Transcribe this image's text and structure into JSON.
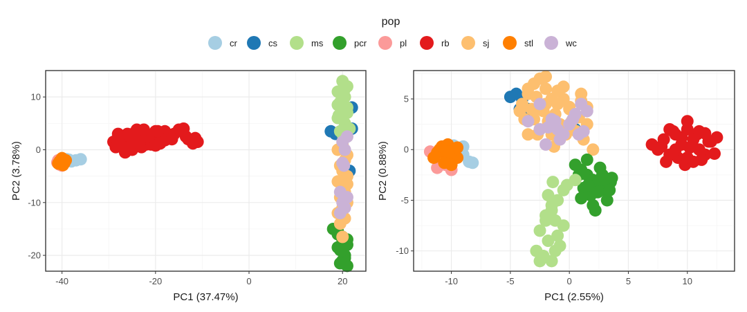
{
  "legend": {
    "title": "pop",
    "items": [
      {
        "key": "cr",
        "label": "cr",
        "color": "#a6cee3"
      },
      {
        "key": "cs",
        "label": "cs",
        "color": "#1f78b4"
      },
      {
        "key": "ms",
        "label": "ms",
        "color": "#b2df8a"
      },
      {
        "key": "pcr",
        "label": "pcr",
        "color": "#33a02c"
      },
      {
        "key": "pl",
        "label": "pl",
        "color": "#fb9a99"
      },
      {
        "key": "rb",
        "label": "rb",
        "color": "#e31a1c"
      },
      {
        "key": "sj",
        "label": "sj",
        "color": "#fdbf6f"
      },
      {
        "key": "stl",
        "label": "stl",
        "color": "#ff7f00"
      },
      {
        "key": "wc",
        "label": "wc",
        "color": "#cab2d6"
      }
    ]
  },
  "chart_data": [
    {
      "type": "scatter",
      "title": "",
      "xlabel": "PC1 (37.47%)",
      "ylabel": "PC2 (3.78%)",
      "xlim": [
        -43.5,
        25
      ],
      "ylim": [
        -23,
        15
      ],
      "xticks": [
        -40,
        -20,
        0,
        20
      ],
      "xtick_labels": [
        "-40",
        "-20",
        "0",
        "20"
      ],
      "yticks": [
        -20,
        -10,
        0,
        10
      ],
      "ytick_labels": [
        "-20",
        "-10",
        "0",
        "10"
      ],
      "series": [
        {
          "name": "cr",
          "x": [
            -40,
            -39,
            -38,
            -37,
            -36,
            -40.5,
            -39.5,
            -38.5
          ],
          "y": [
            -2.0,
            -1.8,
            -2.2,
            -2.0,
            -1.8,
            -2.5,
            -2.2,
            -1.9
          ]
        },
        {
          "name": "pl",
          "x": [
            -40.5,
            -40,
            -41,
            -39.8,
            -40.8
          ],
          "y": [
            -2.8,
            -3.0,
            -2.4,
            -2.6,
            -2.0
          ]
        },
        {
          "name": "stl",
          "x": [
            -40,
            -39.5,
            -40.5,
            -40,
            -39.2,
            -40.8,
            -39.8
          ],
          "y": [
            -2.0,
            -2.5,
            -2.2,
            -1.6,
            -2.0,
            -2.6,
            -2.9
          ]
        },
        {
          "name": "rb",
          "x": [
            -29,
            -28,
            -27,
            -26,
            -25,
            -24,
            -23,
            -22,
            -21,
            -20,
            -19,
            -18,
            -17,
            -16,
            -15,
            -13,
            -12,
            -11,
            -27,
            -25,
            -23,
            -21,
            -19,
            -26,
            -24,
            -22,
            -20,
            -18,
            -28,
            -25,
            -22,
            -20,
            -17,
            -26.5,
            -23.5,
            -21.5,
            -19.5,
            -13.5,
            -11.5,
            -14,
            -28.5,
            -24.5,
            -22.5,
            -16.5
          ],
          "y": [
            1.5,
            2.0,
            1.0,
            2.5,
            1.5,
            2.8,
            2.0,
            3.0,
            1.5,
            2.5,
            2.0,
            3.5,
            2.8,
            3.0,
            3.8,
            2.0,
            1.2,
            1.5,
            0.5,
            0.0,
            0.5,
            1.0,
            1.2,
            3.0,
            3.8,
            1.0,
            3.5,
            1.8,
            3.0,
            1.8,
            2.2,
            0.8,
            2.5,
            -0.5,
            1.2,
            2.5,
            3.5,
            2.5,
            2.2,
            4.0,
            0.5,
            3.2,
            3.8,
            2.0
          ]
        },
        {
          "name": "cs",
          "x": [
            17.5,
            22,
            22,
            21.5,
            18.5
          ],
          "y": [
            3.5,
            8.0,
            4.0,
            -4.0,
            3.0
          ]
        },
        {
          "name": "pcr",
          "x": [
            18,
            19,
            20,
            21,
            19.5,
            20.5,
            20,
            21,
            19,
            20,
            20.5,
            19.5,
            21,
            20,
            19
          ],
          "y": [
            -15,
            -16,
            -17,
            -18,
            -19,
            -20,
            -21,
            -22,
            -18.5,
            -16.5,
            -20.5,
            -21.5,
            -17,
            -19,
            -15.5
          ]
        },
        {
          "name": "ms",
          "x": [
            20,
            21,
            19,
            20.5,
            19.5,
            21,
            20,
            19,
            20.5,
            21.5,
            19.5,
            20,
            19,
            21,
            20,
            20.5,
            19.2,
            20.2
          ],
          "y": [
            13,
            12,
            11,
            10,
            9,
            8,
            7.5,
            6,
            5,
            4,
            3.5,
            10.5,
            8.5,
            7,
            3,
            11.5,
            6.5,
            2.5
          ]
        },
        {
          "name": "sj",
          "x": [
            20,
            19,
            21,
            20.5,
            19.5,
            20,
            21,
            19,
            20,
            20.5,
            19.5,
            21,
            20,
            19,
            20.5,
            19.5,
            21,
            20
          ],
          "y": [
            1,
            0,
            -1,
            -2,
            -3,
            -4,
            -5,
            -6,
            -7,
            -8,
            -9,
            -10,
            -11,
            -12,
            -13,
            -14,
            -6.5,
            -16.5
          ]
        },
        {
          "name": "wc",
          "x": [
            20,
            21,
            20.5,
            20,
            19.5,
            21,
            20,
            20.5,
            19.5,
            20.3
          ],
          "y": [
            1.5,
            2.5,
            0,
            -2.5,
            -8,
            -9,
            -10,
            -11,
            -12,
            -3
          ]
        }
      ]
    },
    {
      "type": "scatter",
      "title": "",
      "xlabel": "PC1 (2.55%)",
      "ylabel": "PC2 (0.88%)",
      "xlim": [
        -13.2,
        14
      ],
      "ylim": [
        -12,
        7.8
      ],
      "xticks": [
        -10,
        -5,
        0,
        5,
        10
      ],
      "xtick_labels": [
        "-10",
        "-5",
        "0",
        "5",
        "10"
      ],
      "yticks": [
        -10,
        -5,
        0,
        5
      ],
      "ytick_labels": [
        "-10",
        "-5",
        "0",
        "5"
      ],
      "series": [
        {
          "name": "cr",
          "x": [
            -10,
            -9.5,
            -9,
            -8.5,
            -8.2,
            -9,
            -10.5,
            -9.8
          ],
          "y": [
            0,
            0.2,
            -0.5,
            -1.2,
            -1.3,
            0.3,
            -0.8,
            0.4
          ]
        },
        {
          "name": "pl",
          "x": [
            -11.5,
            -11,
            -10.5,
            -10,
            -11.2,
            -10.8,
            -10.2,
            -11.8
          ],
          "y": [
            -0.5,
            -1.0,
            -1.5,
            -2.0,
            -1.8,
            -0.3,
            -1.2,
            -0.2
          ]
        },
        {
          "name": "stl",
          "x": [
            -11,
            -10.5,
            -10,
            -9.5,
            -11.2,
            -10.8,
            -10.3,
            -9.8,
            -10,
            -11.5,
            -10.6,
            -9.5,
            -10.2
          ],
          "y": [
            0,
            -0.5,
            -1.0,
            -0.8,
            -0.3,
            0.3,
            0.5,
            0.0,
            -1.5,
            -0.8,
            -1.3,
            0.2,
            -0.2
          ]
        },
        {
          "name": "cs",
          "x": [
            -5,
            -4.5,
            -4,
            -3.5,
            -1,
            0.5,
            -4.2
          ],
          "y": [
            5.2,
            5.5,
            5.0,
            4.0,
            1.5,
            2.0,
            4.0
          ]
        },
        {
          "name": "sj",
          "x": [
            -4,
            -3.5,
            -3,
            -2.5,
            -2,
            -1.5,
            -1,
            -0.5,
            0,
            0.5,
            1,
            1.5,
            -3.8,
            -3.2,
            -2.8,
            -2.2,
            -1.8,
            -1.2,
            -0.8,
            -0.3,
            0.2,
            0.8,
            1.2,
            -2.5,
            -1.5,
            -3,
            -2,
            -1,
            0,
            1,
            2,
            -3.5,
            -2,
            -0.5,
            1.5,
            -4.2,
            -2.7,
            -1.3,
            0.6,
            -3.5,
            -2.5,
            -1
          ],
          "y": [
            4.5,
            5.5,
            6.5,
            7.0,
            6.0,
            5.0,
            4.5,
            5.0,
            4.0,
            3.5,
            5.5,
            2.5,
            3.0,
            4.0,
            5.2,
            3.8,
            2.8,
            3.5,
            2.5,
            1.5,
            2.8,
            3.2,
            1.0,
            2.0,
            1.5,
            3.0,
            4.5,
            5.8,
            4.2,
            4.8,
            0.0,
            6.0,
            7.2,
            6.2,
            4.2,
            3.8,
            1.5,
            0.3,
            1.8,
            1.5,
            4.0,
            2.0
          ]
        },
        {
          "name": "wc",
          "x": [
            -2.5,
            -1.5,
            -1,
            -0.5,
            0,
            0.5,
            1,
            1.5,
            -3.5,
            -1.8,
            -0.8,
            0.3,
            -2.5,
            -1.2,
            0.8,
            -2,
            1.2
          ],
          "y": [
            4.5,
            3.0,
            2.0,
            1.5,
            2.5,
            3.5,
            4.5,
            3.8,
            2.8,
            2.2,
            1.0,
            3.0,
            2.0,
            2.8,
            1.5,
            0.5,
            1.8
          ]
        },
        {
          "name": "pcr",
          "x": [
            0.5,
            1,
            1.5,
            2,
            2.5,
            3,
            3.5,
            1.2,
            1.8,
            2.8,
            3.2,
            2.2,
            1.5,
            2.6,
            3.6,
            1,
            2,
            3,
            0.8,
            1.6,
            2.4,
            3.4
          ],
          "y": [
            -1.5,
            -2.0,
            -2.5,
            -3.0,
            -3.5,
            -4.0,
            -3.2,
            -3.8,
            -4.5,
            -2.5,
            -5.0,
            -6.0,
            -1.0,
            -1.8,
            -2.8,
            -4.8,
            -5.5,
            -3.0,
            -2.5,
            -3.5,
            -4.2,
            -4.0
          ]
        },
        {
          "name": "ms",
          "x": [
            -0.5,
            -1,
            -1.5,
            -2,
            -2.5,
            -1.8,
            -1.2,
            -2.2,
            -1.5,
            -0.8,
            -2.8,
            -1,
            -2,
            -1.5,
            -2.5,
            -0.5,
            -1.2,
            -1.8,
            -0.2,
            -1.4,
            0.5
          ],
          "y": [
            -4.0,
            -5.0,
            -6.0,
            -7.0,
            -8.0,
            -9.0,
            -10.0,
            -10.5,
            -11.0,
            -9.5,
            -10.0,
            -8.5,
            -6.5,
            -5.5,
            -11.0,
            -7.5,
            -7.0,
            -4.5,
            -3.5,
            -3.2,
            -3.0
          ]
        },
        {
          "name": "rb",
          "x": [
            7,
            7.5,
            8,
            8.5,
            9,
            9.5,
            10,
            10.5,
            11,
            11.5,
            12,
            12.5,
            8.2,
            8.8,
            9.2,
            9.8,
            10.2,
            10.8,
            11.2,
            11.8,
            9,
            10,
            11,
            8.5,
            9.5,
            10.5,
            11.5,
            12.3,
            7.8,
            10
          ],
          "y": [
            0.5,
            0.0,
            1.0,
            -0.5,
            1.5,
            0.5,
            2.0,
            1.0,
            0.0,
            -0.5,
            0.8,
            1.2,
            -1.2,
            1.8,
            -0.8,
            -1.5,
            0.2,
            1.5,
            -1.0,
            0.8,
            0.0,
            -0.8,
            1.8,
            2.0,
            1.2,
            -1.2,
            1.6,
            -0.4,
            0.3,
            2.8
          ]
        }
      ]
    }
  ]
}
